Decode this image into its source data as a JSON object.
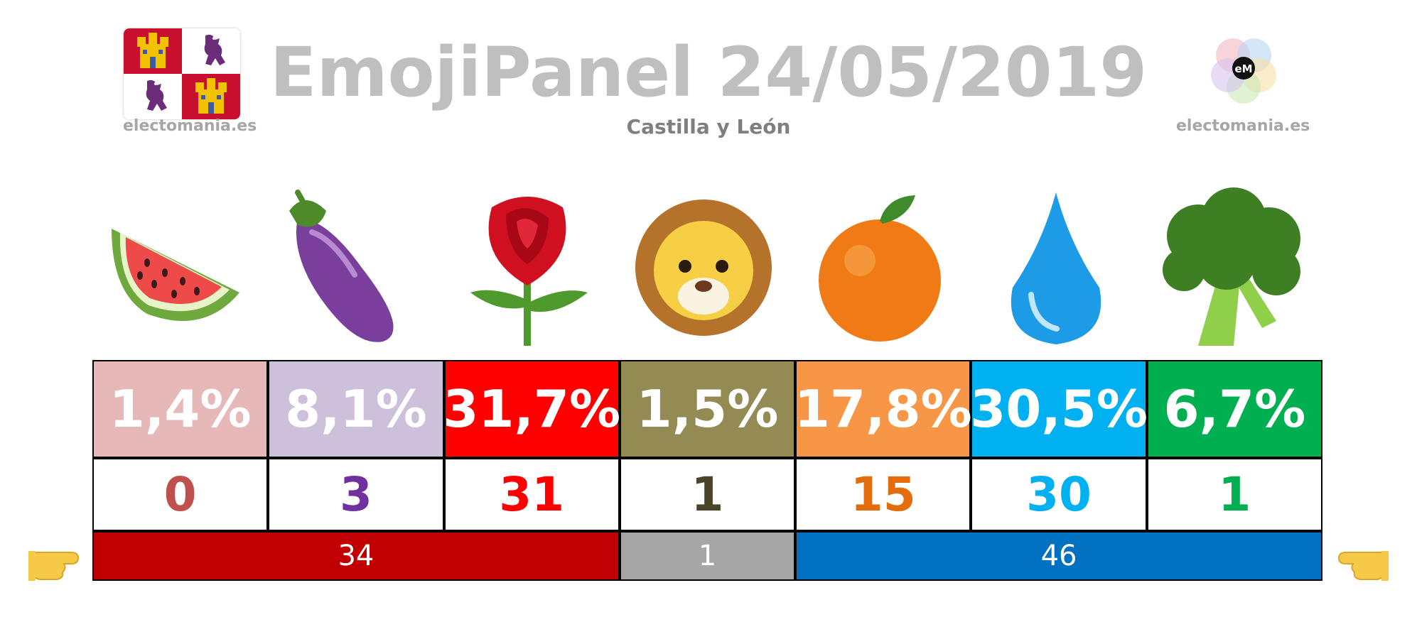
{
  "header": {
    "title": "EmojiPanel 24/05/2019",
    "subtitle": "Castilla y León",
    "brand_left": "electomania.es",
    "brand_right": "electomania.es",
    "logo_text": "eM"
  },
  "icons": {
    "flag": "castilla-y-leon-flag-icon",
    "logo": "electomania-logo-icon",
    "left_hand": "pointing-right-hand-icon",
    "right_hand": "pointing-left-hand-icon"
  },
  "chart_data": {
    "type": "table",
    "parties": [
      {
        "emoji": "watermelon",
        "vote_label": "1,4%",
        "vote": 1.4,
        "seats_label": "0",
        "seats": 0,
        "color": "#e6b9b8",
        "seat_color": "#c0504d"
      },
      {
        "emoji": "eggplant",
        "vote_label": "8,1%",
        "vote": 8.1,
        "seats_label": "3",
        "seats": 3,
        "color": "#ccc0da",
        "seat_color": "#7030a0"
      },
      {
        "emoji": "rose",
        "vote_label": "31,7%",
        "vote": 31.7,
        "seats_label": "31",
        "seats": 31,
        "color": "#ff0000",
        "seat_color": "#ff0000"
      },
      {
        "emoji": "lion",
        "vote_label": "1,5%",
        "vote": 1.5,
        "seats_label": "1",
        "seats": 1,
        "color": "#948a54",
        "seat_color": "#4a452a"
      },
      {
        "emoji": "orange",
        "vote_label": "17,8%",
        "vote": 17.8,
        "seats_label": "15",
        "seats": 15,
        "color": "#f79646",
        "seat_color": "#e46c0a"
      },
      {
        "emoji": "droplet",
        "vote_label": "30,5%",
        "vote": 30.5,
        "seats_label": "30",
        "seats": 30,
        "color": "#00b0f0",
        "seat_color": "#00b0f0"
      },
      {
        "emoji": "broccoli",
        "vote_label": "6,7%",
        "vote": 6.7,
        "seats_label": "1",
        "seats": 1,
        "color": "#00b050",
        "seat_color": "#00b050"
      }
    ],
    "blocks": [
      {
        "label": "34",
        "value": 34,
        "span": 3,
        "color": "#c00000"
      },
      {
        "label": "1",
        "value": 1,
        "span": 1,
        "color": "#a6a6a6"
      },
      {
        "label": "46",
        "value": 46,
        "span": 3,
        "color": "#0070c0"
      }
    ]
  }
}
